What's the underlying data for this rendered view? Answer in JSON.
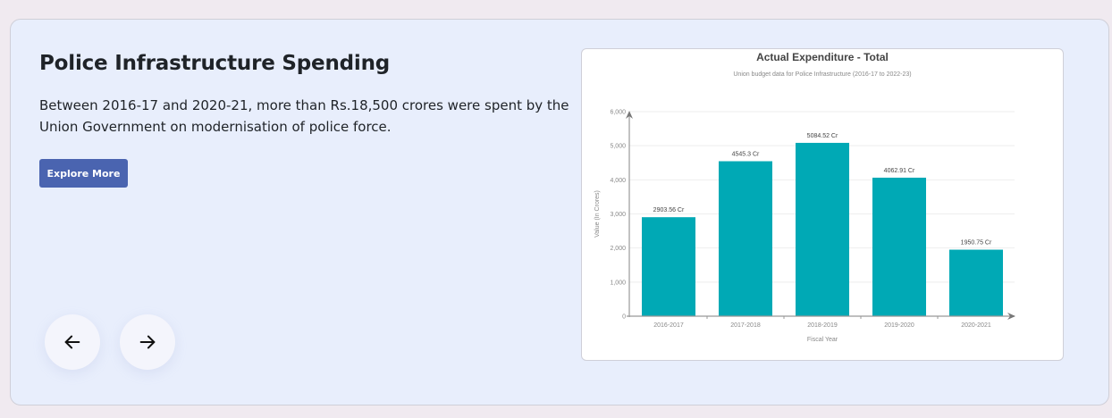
{
  "slide": {
    "title": "Police Infrastructure Spending",
    "description": "Between 2016-17 and 2020-21, more than Rs.18,500 crores were spent by the Union Government on modernisation of police force.",
    "explore_label": "Explore More",
    "prev_icon": "arrow-left-icon",
    "next_icon": "arrow-right-icon"
  },
  "colors": {
    "page_bg": "#f0eaf0",
    "card_bg": "#e8eefc",
    "button_bg": "#4a64b0",
    "bar": "#00a9b5"
  },
  "chart_data": {
    "type": "bar",
    "title": "Actual Expenditure - Total",
    "subtitle": "Union budget data for Police Infrastructure (2016-17 to 2022-23)",
    "xlabel": "Fiscal Year",
    "ylabel": "Value (In Crores)",
    "categories": [
      "2016-2017",
      "2017-2018",
      "2018-2019",
      "2019-2020",
      "2020-2021"
    ],
    "values": [
      2903.56,
      4545.3,
      5084.52,
      4062.91,
      1950.75
    ],
    "data_labels": [
      "2903.56 Cr",
      "4545.3 Cr",
      "5084.52 Cr",
      "4062.91 Cr",
      "1950.75 Cr"
    ],
    "yticks": [
      0,
      1000,
      2000,
      3000,
      4000,
      5000,
      6000
    ],
    "ytick_labels": [
      "0",
      "1,000",
      "2,000",
      "3,000",
      "4,000",
      "5,000",
      "6,000"
    ],
    "ylim": [
      0,
      6000
    ],
    "grid": true,
    "legend": "none"
  }
}
